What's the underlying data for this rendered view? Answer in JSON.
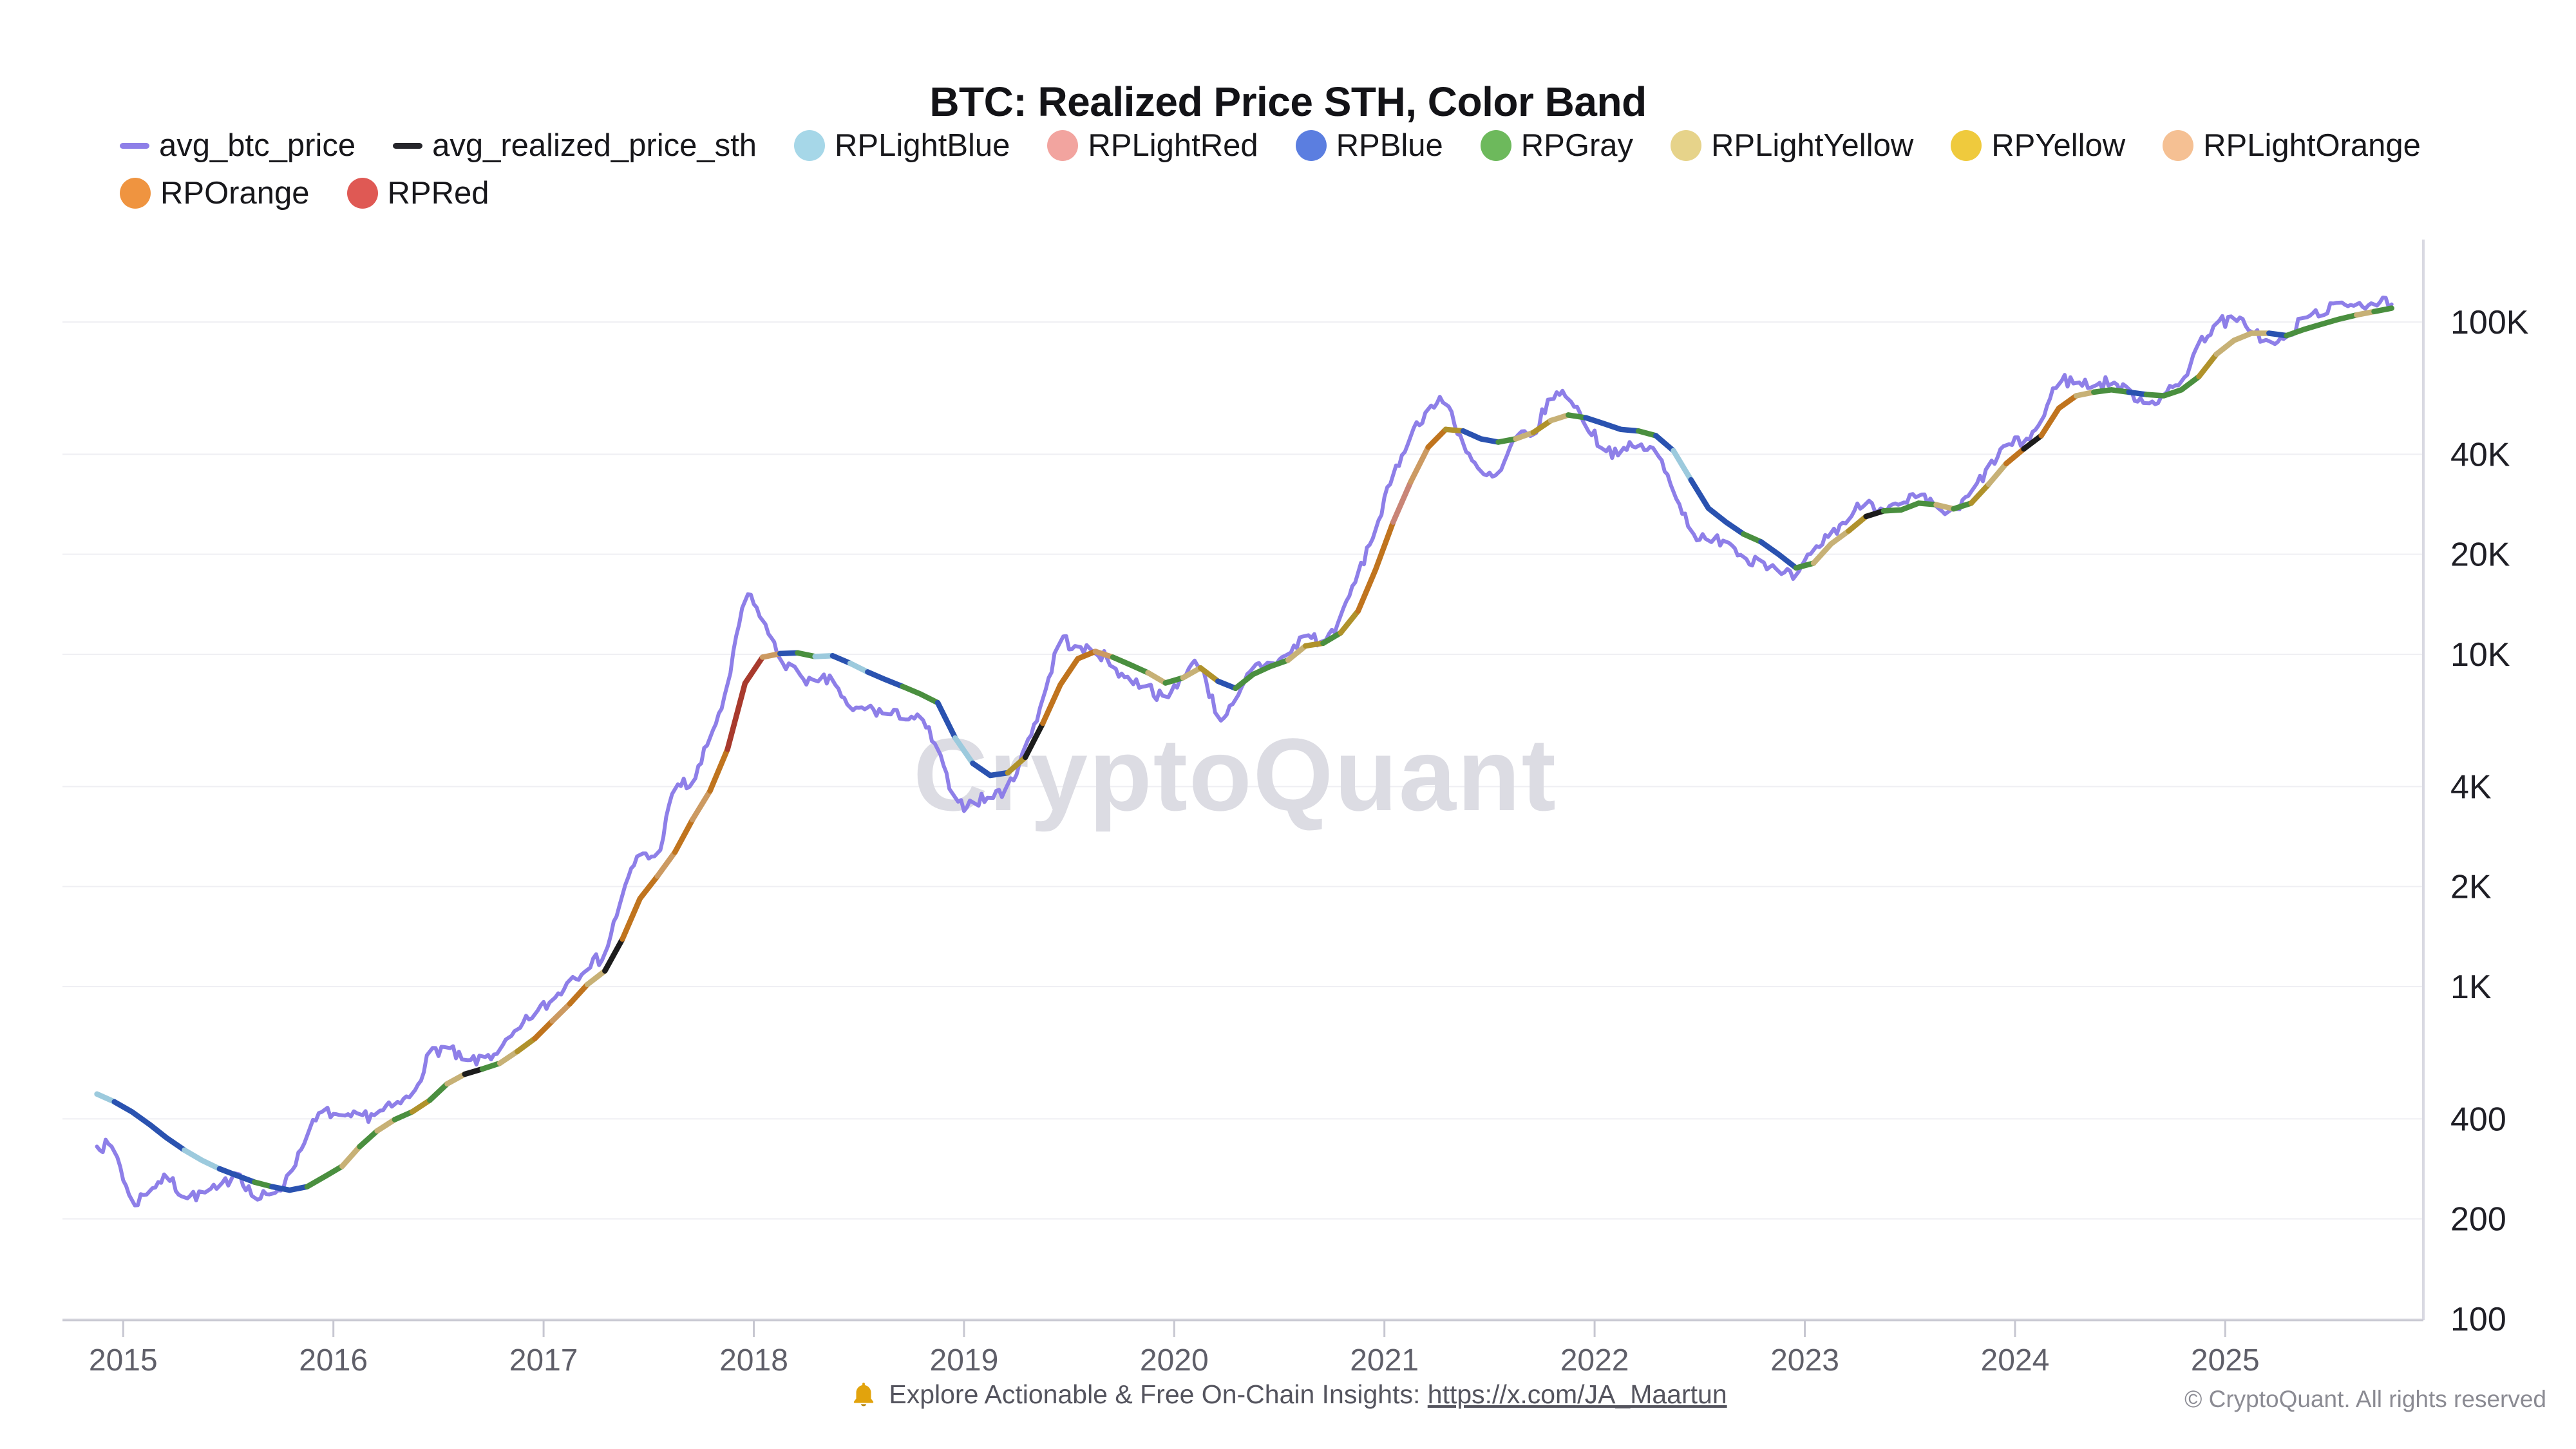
{
  "title": "BTC: Realized Price STH, Color Band",
  "watermark": "CryptoQuant",
  "legend": {
    "items": [
      {
        "label": "avg_btc_price",
        "swatch": "line",
        "color": "#8e7fe8"
      },
      {
        "label": "avg_realized_price_sth",
        "swatch": "line",
        "color": "#26262b"
      },
      {
        "label": "RPLightBlue",
        "swatch": "dot",
        "color": "#a6d7e8"
      },
      {
        "label": "RPLightRed",
        "swatch": "dot",
        "color": "#f2a49f"
      },
      {
        "label": "RPBlue",
        "swatch": "dot",
        "color": "#5b7ee0"
      },
      {
        "label": "RPGray",
        "swatch": "dot",
        "color": "#6db95c"
      },
      {
        "label": "RPLightYellow",
        "swatch": "dot",
        "color": "#e6d38a"
      },
      {
        "label": "RPYellow",
        "swatch": "dot",
        "color": "#efca3d"
      },
      {
        "label": "RPLightOrange",
        "swatch": "dot",
        "color": "#f5c093"
      },
      {
        "label": "RPOrange",
        "swatch": "dot",
        "color": "#ef9440"
      },
      {
        "label": "RPRed",
        "swatch": "dot",
        "color": "#df5954"
      }
    ]
  },
  "footer": {
    "bell_icon": "bell-icon",
    "prefix": "Explore Actionable & Free On-Chain Insights: ",
    "link": "https://x.com/JA_Maartun",
    "copyright": "© CryptoQuant. All rights reserved"
  },
  "chart_data": {
    "type": "line",
    "y_scale": "log",
    "ylim": [
      100,
      163000
    ],
    "grid": "horizontal",
    "legend_position": "top-left",
    "x_start": {
      "year": 2014,
      "month": 11
    },
    "interval": "monthly",
    "x_ticks": [
      2015,
      2016,
      2017,
      2018,
      2019,
      2020,
      2021,
      2022,
      2023,
      2024,
      2025
    ],
    "y_ticks": [
      {
        "value": 100000,
        "label": "100K"
      },
      {
        "value": 40000,
        "label": "40K"
      },
      {
        "value": 20000,
        "label": "20K"
      },
      {
        "value": 10000,
        "label": "10K"
      },
      {
        "value": 4000,
        "label": "4K"
      },
      {
        "value": 2000,
        "label": "2K"
      },
      {
        "value": 1000,
        "label": "1K"
      },
      {
        "value": 400,
        "label": "400"
      },
      {
        "value": 200,
        "label": "200"
      },
      {
        "value": 100,
        "label": "100"
      }
    ],
    "band_colors": {
      "RPLightBlue": "#9ccadd",
      "RPLightRed": "#c98577",
      "RPBlue": "#2a52b0",
      "RPGray": "#4a8f3f",
      "RPLightYellow": "#c7b176",
      "RPYellow": "#b0922b",
      "RPLightOrange": "#cc9a62",
      "RPOrange": "#c0741e",
      "RPRed": "#a83a2d",
      "black": "#1c1c1c"
    },
    "series": [
      {
        "name": "avg_btc_price",
        "color": "#8e7fe8",
        "values": [
          330,
          330,
          218,
          245,
          270,
          232,
          238,
          246,
          283,
          228,
          236,
          270,
          362,
          428,
          398,
          408,
          415,
          438,
          468,
          640,
          658,
          588,
          608,
          642,
          732,
          832,
          905,
          1055,
          1150,
          1235,
          1900,
          2550,
          2410,
          4090,
          4010,
          5610,
          7800,
          15500,
          12800,
          9600,
          8850,
          8100,
          8500,
          6700,
          6950,
          6600,
          6500,
          6450,
          5200,
          3500,
          3600,
          3700,
          3950,
          5200,
          7300,
          11400,
          10300,
          10300,
          9200,
          8300,
          8100,
          7200,
          8700,
          9600,
          6300,
          7100,
          9200,
          9400,
          9900,
          11600,
          10700,
          12800,
          17500,
          23800,
          34500,
          46000,
          55000,
          58500,
          43000,
          34500,
          34000,
          45500,
          45000,
          60000,
          60500,
          49000,
          41500,
          40500,
          42500,
          41000,
          31500,
          23500,
          21500,
          22500,
          19500,
          19400,
          17500,
          16900,
          20500,
          23200,
          25500,
          29200,
          27300,
          27900,
          30000,
          27600,
          26400,
          30500,
          36500,
          42800,
          43200,
          49800,
          68000,
          65500,
          64500,
          66000,
          62000,
          57000,
          60000,
          65500,
          86500,
          99500,
          102000,
          95500,
          85500,
          88500,
          103500,
          106500,
          112500,
          114500,
          113500,
          113000
        ]
      },
      {
        "name": "avg_realized_price_sth",
        "color": "#26262b",
        "values": [
          475,
          450,
          420,
          385,
          350,
          322,
          300,
          283,
          270,
          258,
          250,
          244,
          250,
          268,
          288,
          330,
          368,
          398,
          420,
          455,
          510,
          545,
          565,
          588,
          638,
          698,
          788,
          888,
          1015,
          1115,
          1390,
          1840,
          2150,
          2540,
          3180,
          3880,
          5180,
          8180,
          9800,
          10050,
          10100,
          9850,
          9900,
          9400,
          8850,
          8400,
          8000,
          7600,
          7150,
          5600,
          4700,
          4320,
          4400,
          4900,
          6200,
          8100,
          9700,
          10200,
          9800,
          9300,
          8800,
          8200,
          8500,
          9100,
          8300,
          7900,
          8700,
          9200,
          9600,
          10600,
          10800,
          11600,
          13500,
          18000,
          25000,
          33000,
          42000,
          47500,
          47000,
          44500,
          43500,
          44500,
          46500,
          50500,
          52500,
          51500,
          49500,
          47500,
          47000,
          45500,
          41000,
          33500,
          27500,
          25000,
          23000,
          21800,
          20000,
          18200,
          18800,
          21500,
          23500,
          26000,
          27000,
          27200,
          28500,
          28200,
          27400,
          28500,
          32500,
          37500,
          41500,
          45500,
          55000,
          60000,
          61500,
          62500,
          61500,
          60500,
          60000,
          62500,
          68500,
          80000,
          88000,
          92500,
          92500,
          91000,
          95000,
          98500,
          102000,
          105000,
          107500,
          110000
        ],
        "band_per_point": [
          "RPLightBlue",
          "RPBlue",
          "RPBlue",
          "RPBlue",
          "RPBlue",
          "RPLightBlue",
          "RPLightBlue",
          "RPBlue",
          "RPBlue",
          "RPGray",
          "RPBlue",
          "RPBlue",
          "RPGray",
          "RPGray",
          "RPLightYellow",
          "RPGray",
          "RPLightYellow",
          "RPGray",
          "RPYellow",
          "RPGray",
          "RPLightYellow",
          "black",
          "RPGray",
          "RPLightYellow",
          "RPYellow",
          "RPOrange",
          "RPLightOrange",
          "RPOrange",
          "RPLightYellow",
          "black",
          "RPOrange",
          "RPOrange",
          "RPLightOrange",
          "RPOrange",
          "RPLightOrange",
          "RPOrange",
          "RPRed",
          "RPRed",
          "RPLightOrange",
          "RPBlue",
          "RPGray",
          "RPLightBlue",
          "RPBlue",
          "RPLightBlue",
          "RPBlue",
          "RPBlue",
          "RPGray",
          "RPGray",
          "RPBlue",
          "RPLightBlue",
          "RPBlue",
          "RPBlue",
          "RPYellow",
          "black",
          "RPOrange",
          "RPOrange",
          "RPOrange",
          "RPLightOrange",
          "RPGray",
          "RPGray",
          "RPLightYellow",
          "RPGray",
          "RPLightYellow",
          "RPYellow",
          "RPBlue",
          "RPGray",
          "RPGray",
          "RPGray",
          "RPLightYellow",
          "RPYellow",
          "RPGray",
          "RPYellow",
          "RPOrange",
          "RPOrange",
          "RPLightRed",
          "RPLightOrange",
          "RPOrange",
          "RPYellow",
          "RPBlue",
          "RPBlue",
          "RPGray",
          "RPLightYellow",
          "RPYellow",
          "RPLightYellow",
          "RPGray",
          "RPBlue",
          "RPBlue",
          "RPBlue",
          "RPGray",
          "RPBlue",
          "RPLightBlue",
          "RPBlue",
          "RPBlue",
          "RPBlue",
          "RPGray",
          "RPBlue",
          "RPBlue",
          "RPGray",
          "RPLightYellow",
          "RPLightYellow",
          "RPYellow",
          "black",
          "RPGray",
          "RPGray",
          "RPGray",
          "RPLightYellow",
          "RPGray",
          "RPYellow",
          "RPLightYellow",
          "RPOrange",
          "black",
          "RPOrange",
          "RPOrange",
          "RPLightYellow",
          "RPGray",
          "RPGray",
          "RPBlue",
          "RPGray",
          "RPGray",
          "RPGray",
          "RPYellow",
          "RPLightYellow",
          "RPLightYellow",
          "RPLightYellow",
          "RPBlue",
          "RPGray",
          "RPGray",
          "RPGray",
          "RPGray",
          "RPLightYellow",
          "RPGray",
          "RPLightYellow"
        ]
      }
    ]
  }
}
